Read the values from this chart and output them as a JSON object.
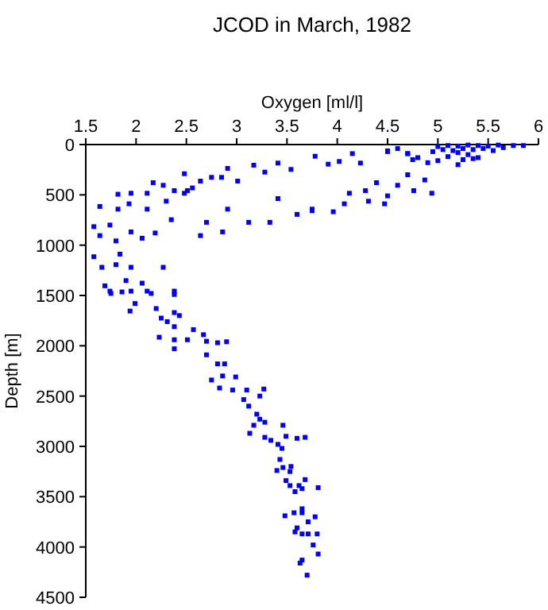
{
  "chart_data": {
    "type": "scatter",
    "title": "JCOD in March, 1982",
    "xlabel": "Oxygen [ml/l]",
    "ylabel": "Depth [m]",
    "xlim": [
      1.5,
      6
    ],
    "xticks": [
      1.5,
      2,
      2.5,
      3,
      3.5,
      4,
      4.5,
      5,
      5.5,
      6
    ],
    "ylim": [
      4500,
      0
    ],
    "yticks": [
      0,
      500,
      1000,
      1500,
      2000,
      2500,
      3000,
      3500,
      4000,
      4500
    ],
    "grid": false,
    "marker": "square",
    "series": [
      {
        "color": "#0000ff",
        "x": [
          5.0,
          5.1,
          5.2,
          5.3,
          5.4,
          5.5,
          5.6,
          5.75,
          5.85,
          5.25,
          5.15,
          5.35,
          5.45,
          5.05,
          4.95,
          5.2,
          5.3,
          5.1,
          5.25,
          5.0,
          4.9,
          5.4,
          5.55,
          5.65,
          5.2,
          5.35,
          4.6,
          4.5,
          4.7,
          4.75,
          4.8,
          2.48,
          2.91,
          3.17,
          3.41,
          3.78,
          4.02,
          4.15,
          4.5,
          4.7,
          3.54,
          3.01,
          2.75,
          2.64,
          2.51,
          2.38,
          2.17,
          2.27,
          2.11,
          1.95,
          1.82,
          1.64,
          1.82,
          1.93,
          2.11,
          2.3,
          2.48,
          2.56,
          2.85,
          3.28,
          3.91,
          4.23,
          4.94,
          4.76,
          4.6,
          4.39,
          4.28,
          4.12,
          4.07,
          3.96,
          3.75,
          3.6,
          3.41,
          3.33,
          3.12,
          2.91,
          2.7,
          2.86,
          2.64,
          2.35,
          2.19,
          2.06,
          1.95,
          1.74,
          1.58,
          1.64,
          1.8,
          4.7,
          4.87,
          4.5,
          4.31,
          3.75,
          4.47,
          1.58,
          1.66,
          1.8,
          1.95,
          2.27,
          1.84,
          1.69,
          1.74,
          1.95,
          2.11,
          2.38,
          2.06,
          1.9,
          1.75,
          1.86,
          2.15,
          2.38,
          1.94,
          1.99,
          2.2,
          2.25,
          2.31,
          2.38,
          2.43,
          2.38,
          2.23,
          2.38,
          2.38,
          2.51,
          2.57,
          2.67,
          2.7,
          2.81,
          2.9,
          2.7,
          2.81,
          2.88,
          2.86,
          2.75,
          2.83,
          2.96,
          2.99,
          3.1,
          3.07,
          3.12,
          3.2,
          3.23,
          3.17,
          3.13,
          3.27,
          3.23,
          3.28,
          3.28,
          3.34,
          3.41,
          3.46,
          3.49,
          3.6,
          3.68,
          3.45,
          3.43,
          3.4,
          3.46,
          3.54,
          3.53,
          3.49,
          3.53,
          3.62,
          3.68,
          3.65,
          3.58,
          3.81,
          3.65,
          3.57,
          3.65,
          3.48,
          3.78,
          3.71,
          3.6,
          3.58,
          3.65,
          3.71,
          3.8,
          3.76,
          3.81,
          3.65,
          3.63,
          3.7
        ],
        "values": [
          20,
          10,
          15,
          5,
          10,
          15,
          5,
          10,
          10,
          40,
          60,
          50,
          40,
          50,
          70,
          80,
          100,
          120,
          150,
          160,
          180,
          130,
          60,
          30,
          200,
          140,
          40,
          70,
          90,
          150,
          130,
          290,
          237,
          205,
          184,
          116,
          168,
          90,
          63,
          90,
          247,
          363,
          326,
          363,
          458,
          458,
          379,
          405,
          484,
          484,
          494,
          615,
          642,
          589,
          642,
          563,
          484,
          431,
          326,
          274,
          195,
          184,
          484,
          458,
          405,
          379,
          458,
          484,
          589,
          668,
          658,
          694,
          537,
          773,
          773,
          642,
          773,
          868,
          905,
          747,
          879,
          931,
          868,
          800,
          816,
          905,
          958,
          300,
          352,
          510,
          563,
          642,
          589,
          1115,
          1220,
          1194,
          1220,
          1220,
          1089,
          1404,
          1457,
          1457,
          1457,
          1457,
          1378,
          1352,
          1480,
          1465,
          1480,
          1490,
          1655,
          1580,
          1630,
          1725,
          1760,
          1670,
          1700,
          1810,
          1915,
          1940,
          2030,
          1940,
          1840,
          1890,
          1955,
          1970,
          1960,
          2090,
          2180,
          2180,
          2300,
          2340,
          2420,
          2440,
          2310,
          2440,
          2535,
          2600,
          2680,
          2730,
          2790,
          2870,
          2430,
          2500,
          2760,
          2910,
          2940,
          2980,
          2790,
          2900,
          2920,
          2910,
          3020,
          3130,
          3240,
          3210,
          3200,
          3250,
          3340,
          3390,
          3390,
          3330,
          3420,
          3450,
          3410,
          3620,
          3660,
          3660,
          3690,
          3700,
          3750,
          3810,
          3850,
          3870,
          3870,
          3870,
          3980,
          4070,
          4130,
          4160,
          4280
        ]
      }
    ]
  }
}
